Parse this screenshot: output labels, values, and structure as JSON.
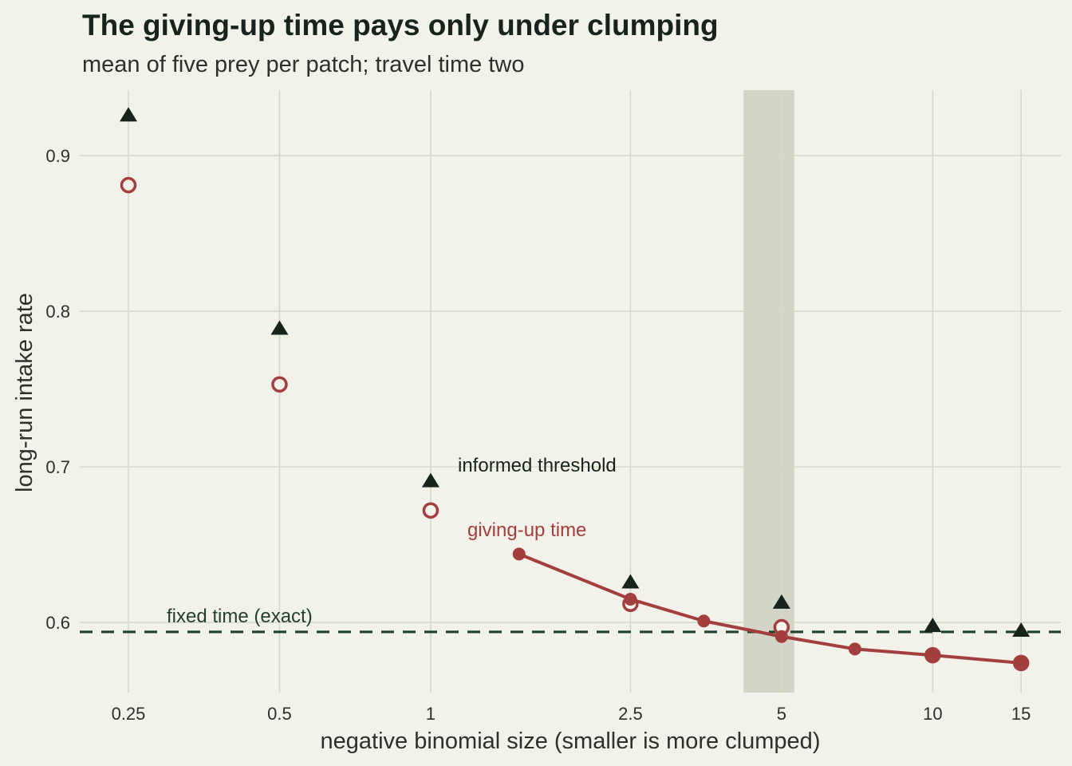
{
  "chart_data": {
    "type": "scatter",
    "title": "The giving-up time pays only under clumping",
    "subtitle": "mean of five prey per patch; travel time two",
    "xlabel": "negative binomial size (smaller is more clumped)",
    "ylabel": "long-run intake rate",
    "x_scale": "log",
    "xlim": [
      0.2,
      18
    ],
    "ylim": [
      0.555,
      0.942
    ],
    "x_ticks": [
      0.25,
      0.5,
      1,
      2.5,
      5,
      10,
      15
    ],
    "x_tick_labels": [
      "0.25",
      "0.5",
      "1",
      "2.5",
      "5",
      "10",
      "15"
    ],
    "y_ticks": [
      0.6,
      0.7,
      0.8,
      0.9
    ],
    "y_tick_labels": [
      "0.6",
      "0.7",
      "0.8",
      "0.9"
    ],
    "grid": true,
    "highlight_band": {
      "x": [
        4.2,
        5.3
      ],
      "color": "#d4d5c6"
    },
    "series": [
      {
        "name": "informed threshold",
        "marker": "filled-triangle",
        "color": "#17231c",
        "x": [
          0.25,
          0.5,
          1,
          2.5,
          5,
          10,
          15
        ],
        "y": [
          0.926,
          0.789,
          0.691,
          0.626,
          0.613,
          0.598,
          0.595
        ]
      },
      {
        "name": "giving-up time",
        "marker": "open-circle",
        "color": "#a33e3e",
        "x": [
          0.25,
          0.5,
          1,
          2.5,
          5,
          10,
          15
        ],
        "y": [
          0.881,
          0.753,
          0.672,
          0.612,
          0.597,
          0.579,
          0.574
        ]
      },
      {
        "name": "giving-up time",
        "marker": "filled-circle-line",
        "color": "#a33e3e",
        "x": [
          1.5,
          2.5,
          3.5,
          5,
          7,
          10,
          15
        ],
        "y": [
          0.644,
          0.615,
          0.601,
          0.591,
          0.583,
          0.579,
          0.574
        ]
      }
    ],
    "reference_lines": [
      {
        "name": "fixed time (exact)",
        "y": 0.594,
        "style": "dashed",
        "color": "#23402c"
      }
    ],
    "annotations": [
      {
        "text": "informed threshold",
        "color": "#17231c"
      },
      {
        "text": "giving-up time",
        "color": "#a33e3e"
      },
      {
        "text": "fixed time (exact)",
        "color": "#23402c"
      }
    ]
  }
}
